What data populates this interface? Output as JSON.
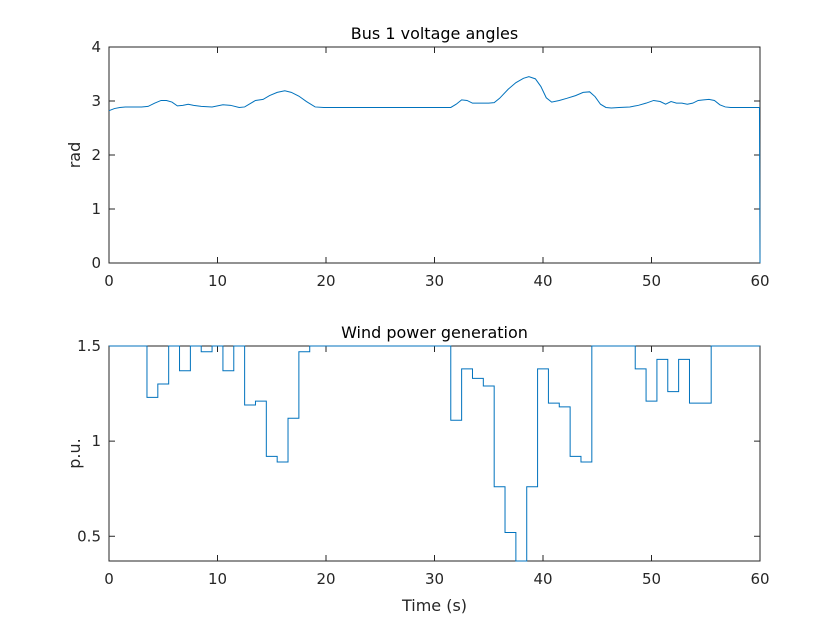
{
  "chart_data": [
    {
      "type": "line",
      "title": "Bus 1 voltage angles",
      "xlabel": "",
      "ylabel": "rad",
      "xlim": [
        0,
        60
      ],
      "ylim": [
        0,
        4
      ],
      "xticks": [
        "0",
        "10",
        "20",
        "30",
        "40",
        "50",
        "60"
      ],
      "yticks": [
        "0",
        "1",
        "2",
        "3",
        "4"
      ],
      "grid": false,
      "color": "#0072BD",
      "series": [
        {
          "x": [
            0,
            0.5,
            1,
            1.5,
            2,
            3,
            3.6,
            4.2,
            4.8,
            5.3,
            5.8,
            6.3,
            6.8,
            7.3,
            7.8,
            8.5,
            9.5,
            10.5,
            11.2,
            12,
            12.5,
            13,
            13.5,
            14.2,
            14.8,
            15.5,
            16.2,
            16.8,
            17.5,
            18.2,
            19,
            19.8,
            21,
            25,
            30,
            31.5,
            32,
            32.5,
            33,
            33.5,
            34,
            34.5,
            35,
            35.5,
            36,
            36.8,
            37.5,
            38.2,
            38.7,
            39.3,
            39.8,
            40.3,
            40.8,
            41.5,
            42.2,
            43,
            43.7,
            44.3,
            44.8,
            45.3,
            45.8,
            46.3,
            47,
            48,
            48.8,
            49.5,
            50.2,
            50.8,
            51.3,
            51.8,
            52.3,
            52.8,
            53.3,
            53.8,
            54.3,
            54.8,
            55.3,
            55.8,
            56.3,
            56.8,
            57.3,
            58,
            59,
            59.95,
            60
          ],
          "y": [
            2.82,
            2.86,
            2.88,
            2.89,
            2.89,
            2.89,
            2.9,
            2.96,
            3.01,
            3.01,
            2.98,
            2.91,
            2.92,
            2.94,
            2.92,
            2.9,
            2.89,
            2.93,
            2.92,
            2.88,
            2.89,
            2.95,
            3.01,
            3.03,
            3.1,
            3.16,
            3.19,
            3.16,
            3.09,
            2.99,
            2.89,
            2.88,
            2.88,
            2.88,
            2.88,
            2.88,
            2.94,
            3.02,
            3.01,
            2.96,
            2.96,
            2.96,
            2.96,
            2.97,
            3.05,
            3.22,
            3.34,
            3.42,
            3.45,
            3.41,
            3.27,
            3.06,
            2.98,
            3.01,
            3.05,
            3.1,
            3.16,
            3.17,
            3.08,
            2.94,
            2.88,
            2.87,
            2.88,
            2.89,
            2.92,
            2.96,
            3.01,
            2.99,
            2.94,
            2.99,
            2.96,
            2.96,
            2.94,
            2.96,
            3.01,
            3.02,
            3.03,
            3.01,
            2.93,
            2.89,
            2.88,
            2.88,
            2.88,
            2.88,
            0
          ]
        }
      ]
    },
    {
      "type": "line",
      "title": "Wind power generation",
      "xlabel": "Time (s)",
      "ylabel": "p.u.",
      "xlim": [
        0,
        60
      ],
      "ylim": [
        0.37,
        1.5
      ],
      "xticks": [
        "0",
        "10",
        "20",
        "30",
        "40",
        "50",
        "60"
      ],
      "yticks": [
        "0.5",
        "1",
        "1.5"
      ],
      "grid": false,
      "color": "#0072BD",
      "series": [
        {
          "x": [
            0,
            3.5,
            3.5,
            4.5,
            4.5,
            5.5,
            5.5,
            6.5,
            6.5,
            7.5,
            7.5,
            8.5,
            8.5,
            9.5,
            9.5,
            10.5,
            10.5,
            11.5,
            11.5,
            12.5,
            12.5,
            13.5,
            13.5,
            14.5,
            14.5,
            15.5,
            15.5,
            16.5,
            16.5,
            17.5,
            17.5,
            18.5,
            18.5,
            31.5,
            31.5,
            32.5,
            32.5,
            33.5,
            33.5,
            34.5,
            34.5,
            35.5,
            35.5,
            36.5,
            36.5,
            37.5,
            37.5,
            38.5,
            38.5,
            39.5,
            39.5,
            40.5,
            40.5,
            41.5,
            41.5,
            42.5,
            42.5,
            43.5,
            43.5,
            44.5,
            44.5,
            48.5,
            48.5,
            49.5,
            49.5,
            50.5,
            50.5,
            51.5,
            51.5,
            52.5,
            52.5,
            53.5,
            53.5,
            54.5,
            54.5,
            55.5,
            55.5,
            60
          ],
          "y": [
            1.5,
            1.5,
            1.23,
            1.23,
            1.3,
            1.3,
            1.5,
            1.5,
            1.37,
            1.37,
            1.5,
            1.5,
            1.47,
            1.47,
            1.5,
            1.5,
            1.37,
            1.37,
            1.5,
            1.5,
            1.19,
            1.19,
            1.21,
            1.21,
            0.92,
            0.92,
            0.89,
            0.89,
            1.12,
            1.12,
            1.47,
            1.47,
            1.5,
            1.5,
            1.11,
            1.11,
            1.38,
            1.38,
            1.33,
            1.33,
            1.29,
            1.29,
            0.76,
            0.76,
            0.52,
            0.52,
            0.37,
            0.37,
            0.76,
            0.76,
            1.38,
            1.38,
            1.2,
            1.2,
            1.18,
            1.18,
            0.92,
            0.92,
            0.89,
            0.89,
            1.5,
            1.5,
            1.38,
            1.38,
            1.21,
            1.21,
            1.43,
            1.43,
            1.26,
            1.26,
            1.43,
            1.43,
            1.2,
            1.2,
            1.2,
            1.2,
            1.5,
            1.5
          ]
        }
      ]
    }
  ]
}
